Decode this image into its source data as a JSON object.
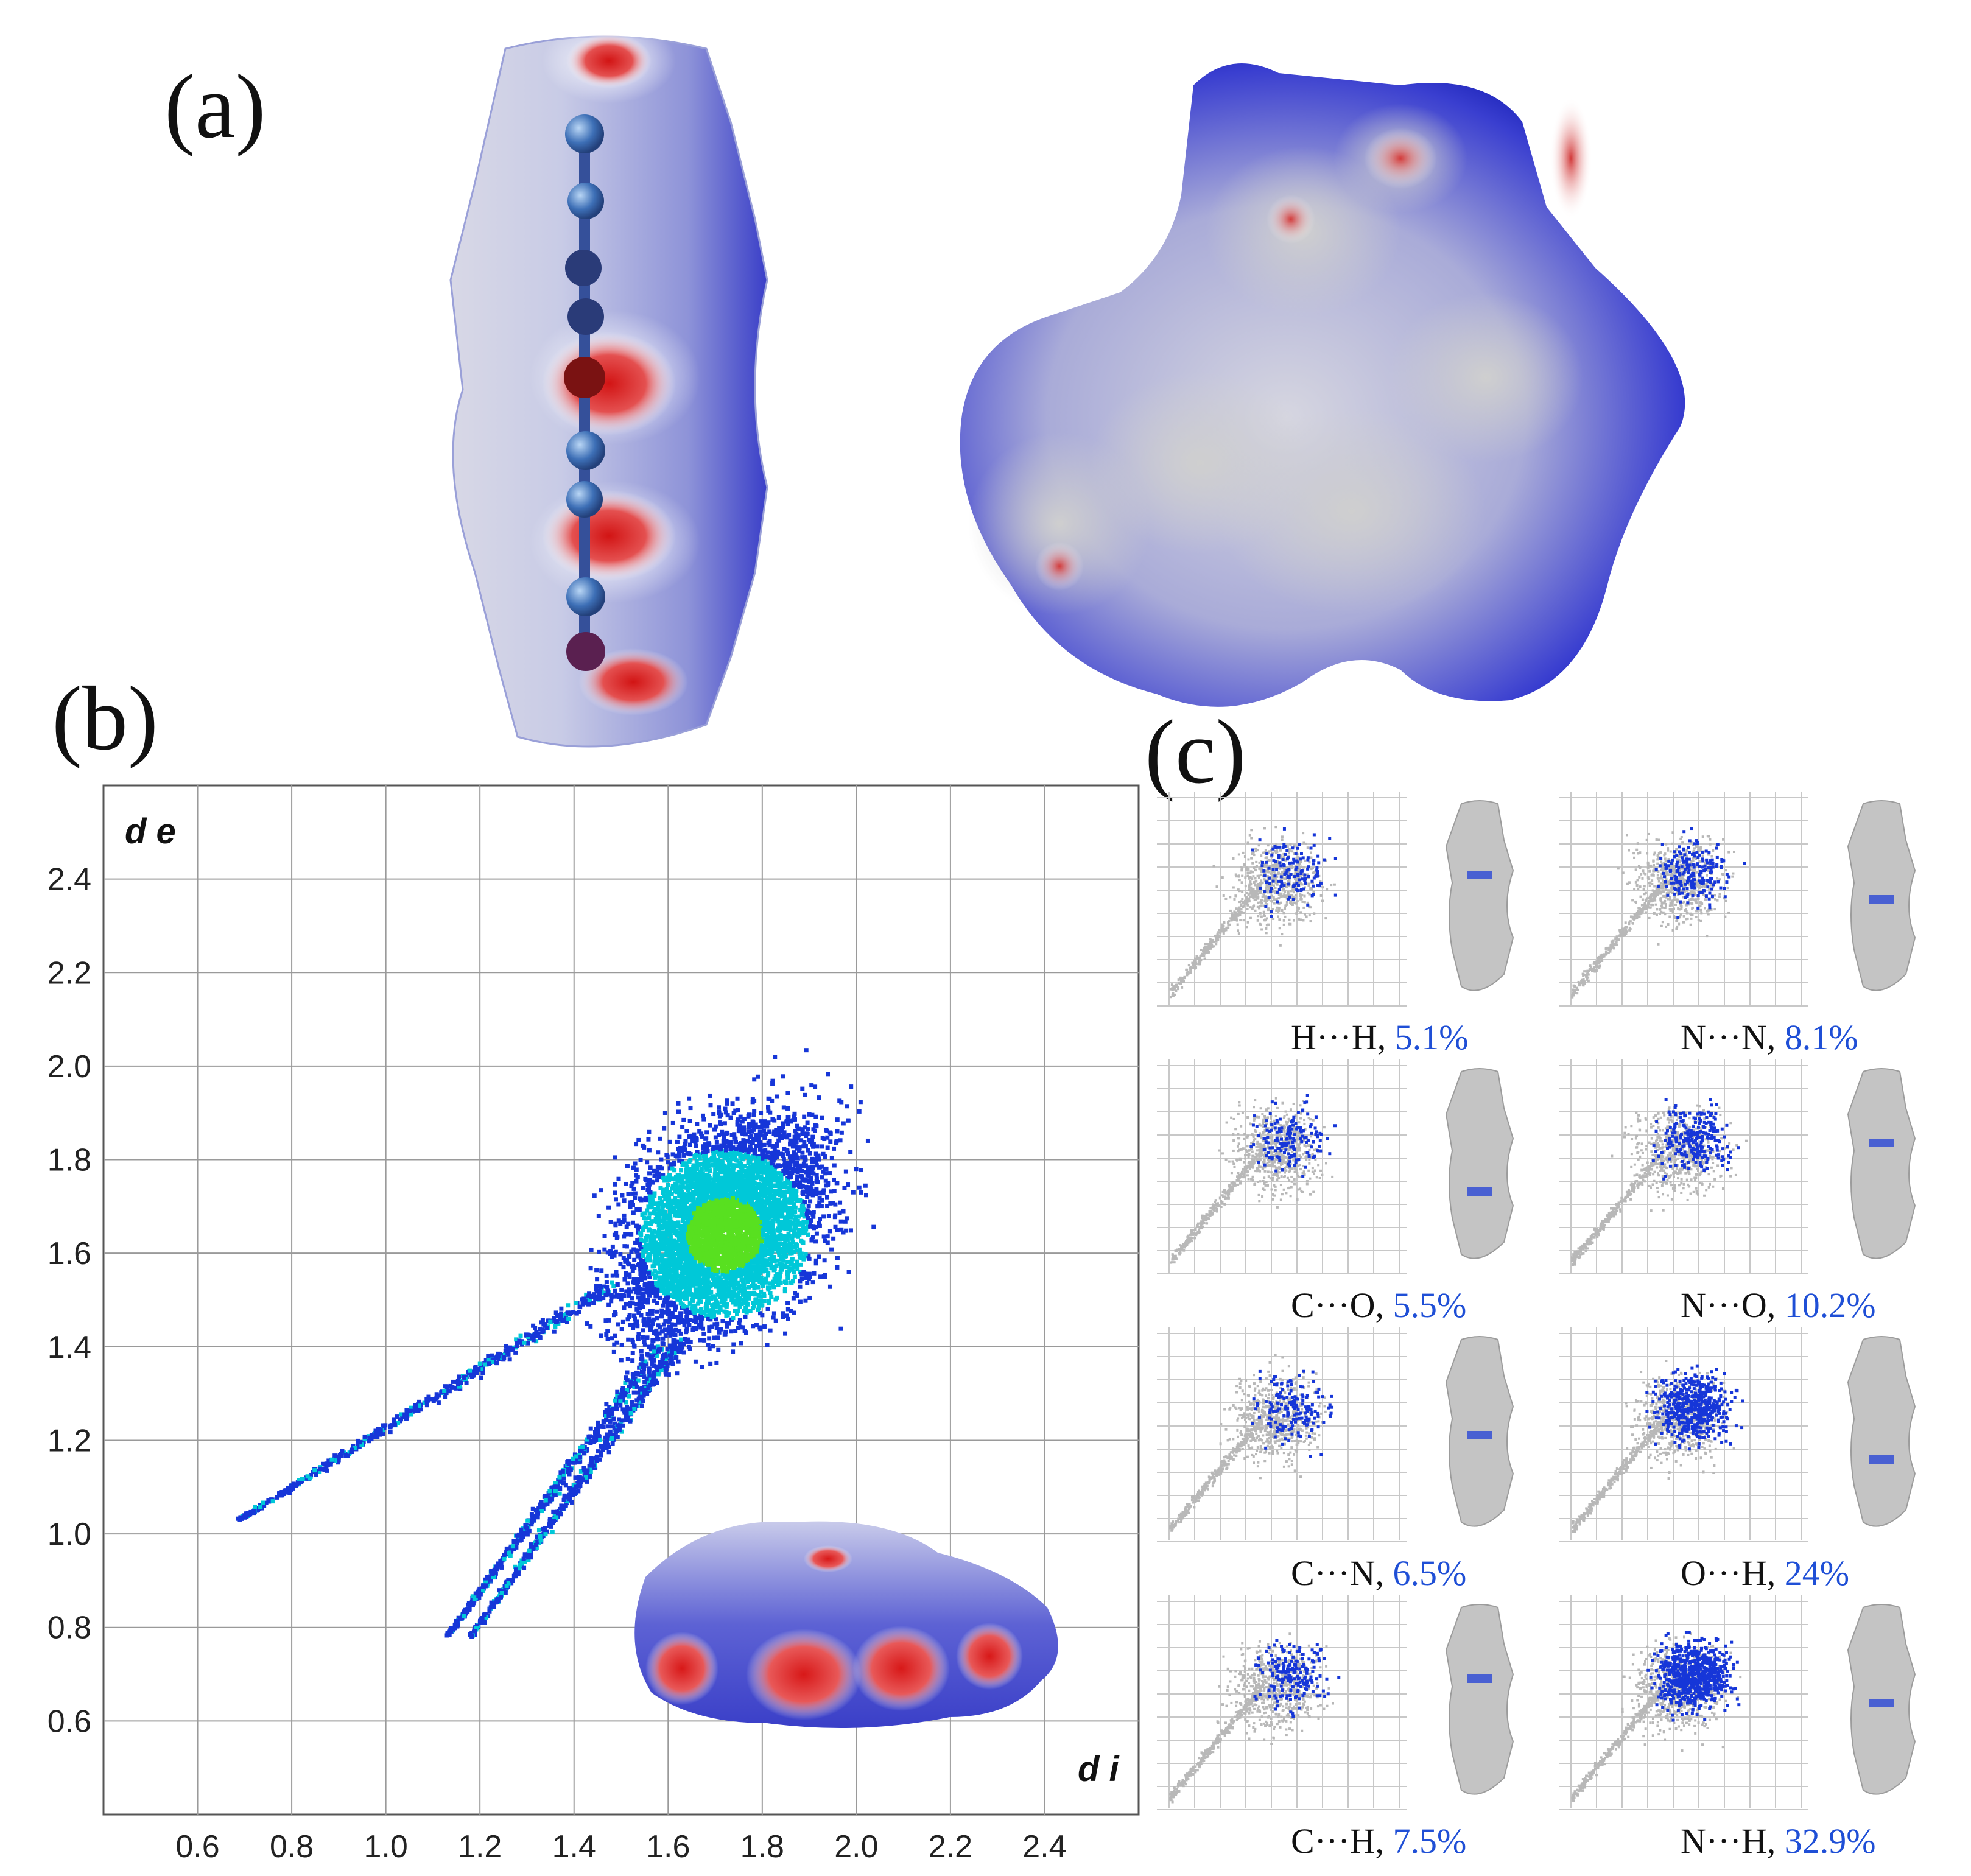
{
  "panels": {
    "a": "(a)",
    "b": "(b)",
    "c": "(c)"
  },
  "colors": {
    "surface_blue": "#2a2fd0",
    "surface_white": "#f2f2f6",
    "surface_red": "#e0201e",
    "fingerprint_low": "#1636d8",
    "fingerprint_mid": "#00c8d8",
    "fingerprint_high": "#58e020",
    "grey_points": "#b8b8b8",
    "percent_text": "#1f4fd6"
  },
  "chart_data": [
    {
      "type": "scatter",
      "name_of_panel": "(b)",
      "xlabel": "d i",
      "ylabel": "d e",
      "xlim": [
        0.4,
        2.6
      ],
      "ylim": [
        0.4,
        2.6
      ],
      "x_ticks": [
        "0.6",
        "0.8",
        "1.0",
        "1.2",
        "1.4",
        "1.6",
        "1.8",
        "2.0",
        "2.2",
        "2.4"
      ],
      "y_ticks": [
        "0.6",
        "0.8",
        "1.0",
        "1.2",
        "1.4",
        "1.6",
        "1.8",
        "2.0",
        "2.2",
        "2.4"
      ],
      "grid": true,
      "regions": [
        {
          "kind": "spike",
          "from": [
            0.69,
            1.03
          ],
          "to": [
            1.48,
            1.53
          ]
        },
        {
          "kind": "spike",
          "from": [
            1.13,
            0.78
          ],
          "to": [
            1.58,
            1.4
          ]
        },
        {
          "kind": "spike",
          "from": [
            1.18,
            0.78
          ],
          "to": [
            1.63,
            1.42
          ]
        },
        {
          "kind": "cloud",
          "center": [
            1.72,
            1.66
          ],
          "extent_x": [
            1.4,
            2.35
          ],
          "extent_y": [
            1.0,
            2.3
          ]
        }
      ],
      "peak_density": [
        1.72,
        1.64
      ]
    }
  ],
  "fingerprints": [
    {
      "pair": "H···H",
      "percent": "5.1%"
    },
    {
      "pair": "N···N",
      "percent": "8.1%"
    },
    {
      "pair": "C···O",
      "percent": "5.5%"
    },
    {
      "pair": "N···O",
      "percent": "10.2%"
    },
    {
      "pair": "C···N",
      "percent": "6.5%"
    },
    {
      "pair": "O···H",
      "percent": "24%"
    },
    {
      "pair": "C···H",
      "percent": "7.5%"
    },
    {
      "pair": "N···H",
      "percent": "32.9%"
    }
  ]
}
